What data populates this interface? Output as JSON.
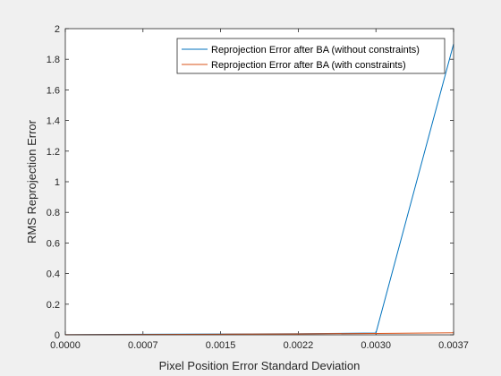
{
  "chart_data": {
    "type": "line",
    "xlabel": "Pixel Position Error Standard Deviation",
    "ylabel": "RMS Reprojection Error",
    "xlim": [
      0,
      0.0037
    ],
    "ylim": [
      0,
      2
    ],
    "x_ticks": [
      "0.0000",
      "0.0007",
      "0.0015",
      "0.0022",
      "0.0030",
      "0.0037"
    ],
    "x_tick_values": [
      0,
      0.00074,
      0.00148,
      0.00222,
      0.00296,
      0.0037
    ],
    "y_ticks": [
      "0",
      "0.2",
      "0.4",
      "0.6",
      "0.8",
      "1",
      "1.2",
      "1.4",
      "1.6",
      "1.8",
      "2"
    ],
    "y_tick_values": [
      0,
      0.2,
      0.4,
      0.6,
      0.8,
      1.0,
      1.2,
      1.4,
      1.6,
      1.8,
      2.0
    ],
    "grid": false,
    "legend_position": "top-right",
    "series": [
      {
        "name": "Reprojection Error after BA (without constraints)",
        "color": "#0072bd",
        "x": [
          0,
          0.00074,
          0.00148,
          0.00222,
          0.00296,
          0.0037
        ],
        "y": [
          0.001,
          0.004,
          0.005,
          0.007,
          0.012,
          1.9
        ]
      },
      {
        "name": "Reprojection Error after BA (with constraints)",
        "color": "#d95319",
        "x": [
          0,
          0.00074,
          0.00148,
          0.00222,
          0.00296,
          0.0037
        ],
        "y": [
          0.001,
          0.002,
          0.004,
          0.006,
          0.009,
          0.013
        ]
      }
    ]
  }
}
